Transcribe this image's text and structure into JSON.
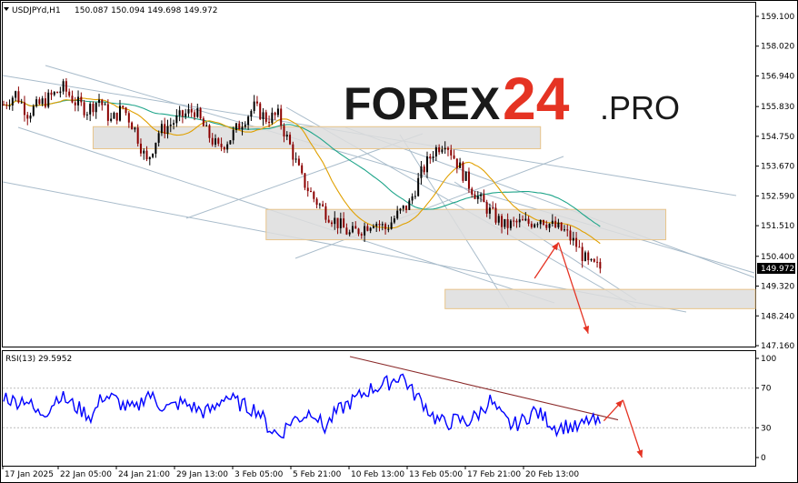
{
  "header": {
    "symbol": "USDJPYd,H1",
    "ohlc": "150.087 150.094 149.698 149.972"
  },
  "logo": {
    "part1": "FOREX",
    "part2": "24",
    "part3": ".PRO",
    "colors": {
      "part1": "#1a1a1a",
      "part2": "#e53323",
      "part3": "#1a1a1a"
    }
  },
  "price_labels": [
    "159.100",
    "158.020",
    "156.940",
    "155.830",
    "154.750",
    "153.670",
    "152.590",
    "151.510",
    "150.400",
    "149.320",
    "148.240",
    "147.160"
  ],
  "current_price": "149.972",
  "rsi": {
    "label": "RSI(13) 29.5952",
    "levels": [
      "100",
      "70",
      "30",
      "0"
    ]
  },
  "time_labels": [
    "17 Jan 2025",
    "22 Jan 05:00",
    "24 Jan 21:00",
    "29 Jan 13:00",
    "3 Feb 05:00",
    "5 Feb 21:00",
    "10 Feb 13:00",
    "13 Feb 05:00",
    "17 Feb 21:00",
    "20 Feb 13:00"
  ],
  "colors": {
    "candle_up": "#000000",
    "candle_down": "#8b0000",
    "ma_fast": "#e0a000",
    "ma_slow": "#1fa58a",
    "trend_line": "#a9bccb",
    "zone_fill": "#dddddd",
    "zone_border": "#e8c48a",
    "arrow": "#e53323",
    "rsi_line": "#0000ff",
    "rsi_trend": "#8b2a2a"
  },
  "chart_data": [
    {
      "type": "candlestick",
      "title": "USDJPYd,H1",
      "ylim": [
        147.16,
        159.1
      ],
      "x_ticks": [
        "17 Jan 2025",
        "22 Jan 05:00",
        "24 Jan 21:00",
        "29 Jan 13:00",
        "3 Feb 05:00",
        "5 Feb 21:00",
        "10 Feb 13:00",
        "13 Feb 05:00",
        "17 Feb 21:00",
        "20 Feb 13:00"
      ],
      "close_path": [
        [
          0,
          155.9
        ],
        [
          4,
          156.3
        ],
        [
          8,
          155.6
        ],
        [
          12,
          155.9
        ],
        [
          16,
          156.2
        ],
        [
          20,
          156.5
        ],
        [
          24,
          156.0
        ],
        [
          28,
          155.7
        ],
        [
          32,
          156.1
        ],
        [
          36,
          155.3
        ],
        [
          40,
          155.8
        ],
        [
          44,
          155.0
        ],
        [
          48,
          153.8
        ],
        [
          52,
          154.9
        ],
        [
          56,
          155.2
        ],
        [
          60,
          155.5
        ],
        [
          64,
          155.7
        ],
        [
          68,
          154.9
        ],
        [
          72,
          154.3
        ],
        [
          76,
          154.7
        ],
        [
          80,
          155.3
        ],
        [
          84,
          155.8
        ],
        [
          88,
          155.4
        ],
        [
          92,
          155.5
        ],
        [
          96,
          154.4
        ],
        [
          100,
          153.2
        ],
        [
          104,
          152.5
        ],
        [
          108,
          152.0
        ],
        [
          112,
          151.6
        ],
        [
          116,
          151.2
        ],
        [
          120,
          151.4
        ],
        [
          124,
          151.7
        ],
        [
          128,
          151.4
        ],
        [
          132,
          151.9
        ],
        [
          136,
          152.3
        ],
        [
          140,
          153.4
        ],
        [
          144,
          154.2
        ],
        [
          148,
          154.6
        ],
        [
          152,
          153.8
        ],
        [
          156,
          153.0
        ],
        [
          160,
          152.4
        ],
        [
          164,
          151.9
        ],
        [
          168,
          151.5
        ],
        [
          172,
          151.6
        ],
        [
          176,
          151.6
        ],
        [
          180,
          151.8
        ],
        [
          184,
          151.5
        ],
        [
          188,
          151.3
        ],
        [
          192,
          150.8
        ],
        [
          196,
          150.1
        ],
        [
          200,
          149.97
        ]
      ],
      "zones": [
        {
          "x": [
            30,
            180
          ],
          "y": [
            154.3,
            155.1
          ]
        },
        {
          "x": [
            88,
            222
          ],
          "y": [
            151.0,
            152.1
          ]
        },
        {
          "x": [
            148,
            252
          ],
          "y": [
            148.5,
            149.2
          ]
        }
      ],
      "forecast_path": [
        [
          178,
          149.6
        ],
        [
          186,
          150.9
        ],
        [
          196,
          147.6
        ]
      ]
    },
    {
      "type": "line",
      "title": "RSI(13) 29.5952",
      "ylim": [
        0,
        100
      ],
      "levels": [
        70,
        30
      ],
      "current": 29.5952,
      "values": [
        63,
        56,
        60,
        44,
        48,
        63,
        55,
        48,
        41,
        63,
        59,
        51,
        48,
        66,
        54,
        50,
        55,
        52,
        46,
        48,
        63,
        56,
        51,
        48,
        30,
        22,
        37,
        41,
        48,
        29,
        44,
        53,
        60,
        68,
        72,
        76,
        84,
        66,
        55,
        40,
        34,
        38,
        36,
        44,
        58,
        42,
        32,
        37,
        47,
        40,
        30,
        32,
        29,
        38,
        33
      ],
      "forecast_path": [
        [
          0,
          37
        ],
        [
          6,
          58
        ],
        [
          12,
          0
        ]
      ]
    }
  ]
}
